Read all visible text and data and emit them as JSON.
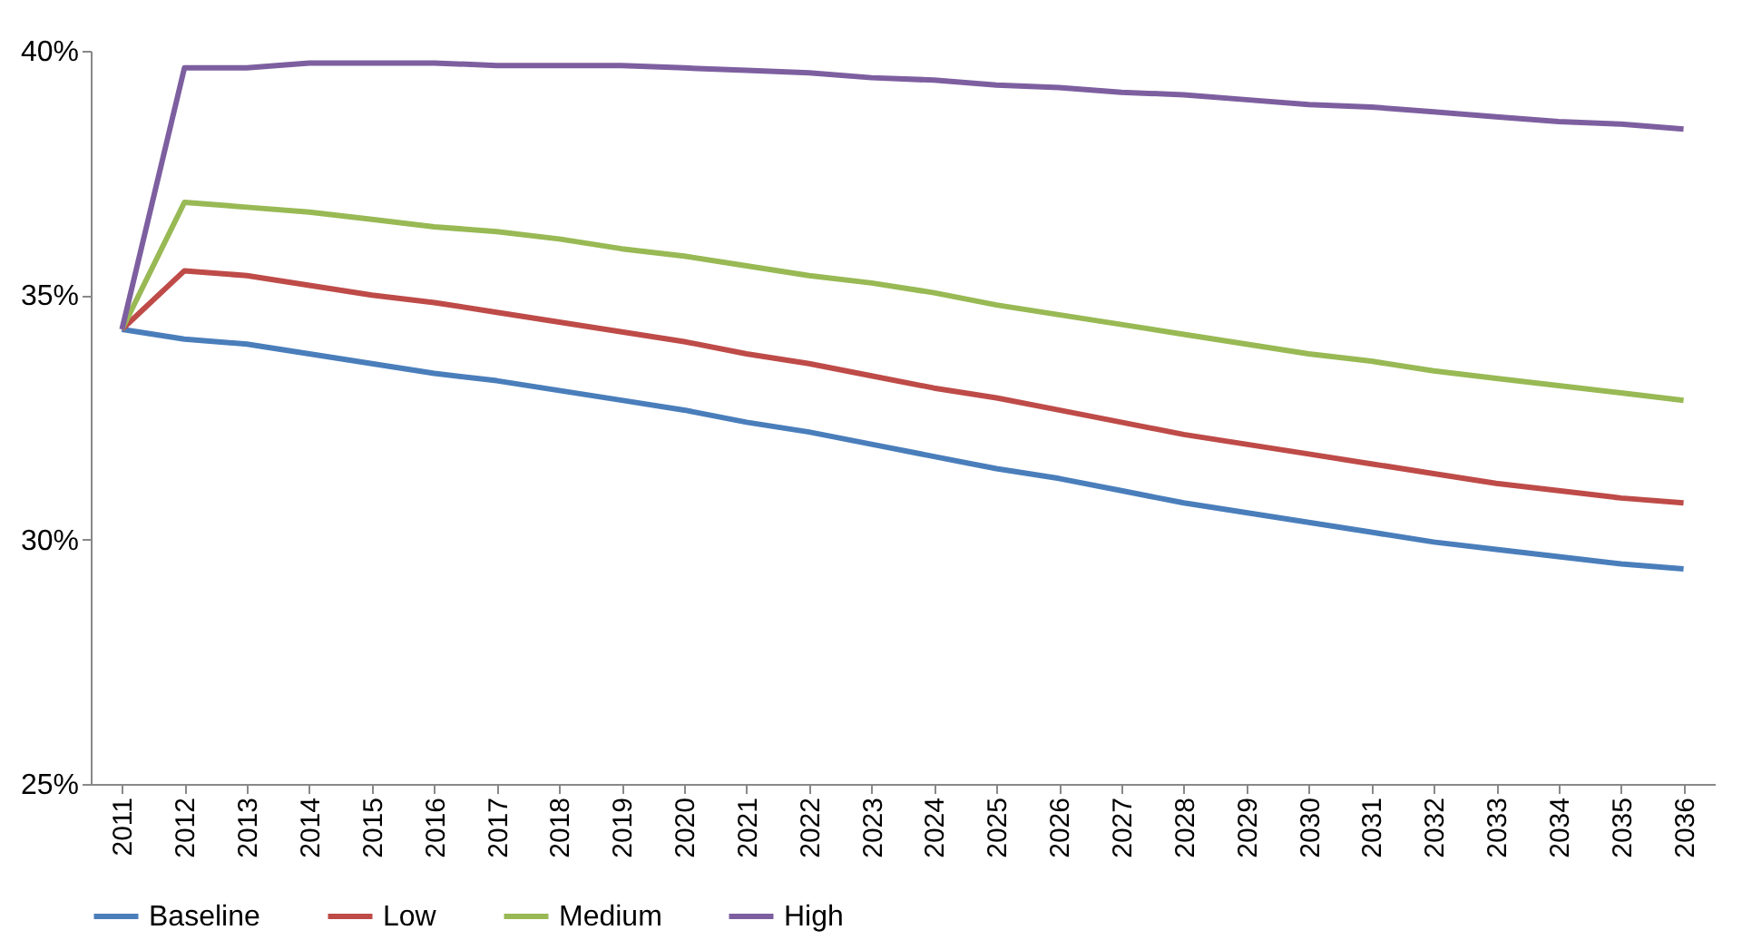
{
  "chart_data": {
    "type": "line",
    "categories": [
      "2011",
      "2012",
      "2013",
      "2014",
      "2015",
      "2016",
      "2017",
      "2018",
      "2019",
      "2020",
      "2021",
      "2022",
      "2023",
      "2024",
      "2025",
      "2026",
      "2027",
      "2028",
      "2029",
      "2030",
      "2031",
      "2032",
      "2033",
      "2034",
      "2035",
      "2036"
    ],
    "series": [
      {
        "name": "Baseline",
        "color": "#4a7ebb",
        "values": [
          34.3,
          34.1,
          34.0,
          33.8,
          33.6,
          33.4,
          33.25,
          33.05,
          32.85,
          32.65,
          32.4,
          32.2,
          31.95,
          31.7,
          31.45,
          31.25,
          31.0,
          30.75,
          30.55,
          30.35,
          30.15,
          29.95,
          29.8,
          29.65,
          29.5,
          29.4
        ]
      },
      {
        "name": "Low",
        "color": "#be4b48",
        "values": [
          34.3,
          35.5,
          35.4,
          35.2,
          35.0,
          34.85,
          34.65,
          34.45,
          34.25,
          34.05,
          33.8,
          33.6,
          33.35,
          33.1,
          32.9,
          32.65,
          32.4,
          32.15,
          31.95,
          31.75,
          31.55,
          31.35,
          31.15,
          31.0,
          30.85,
          30.75
        ]
      },
      {
        "name": "Medium",
        "color": "#98b954",
        "values": [
          34.3,
          36.9,
          36.8,
          36.7,
          36.55,
          36.4,
          36.3,
          36.15,
          35.95,
          35.8,
          35.6,
          35.4,
          35.25,
          35.05,
          34.8,
          34.6,
          34.4,
          34.2,
          34.0,
          33.8,
          33.65,
          33.45,
          33.3,
          33.15,
          33.0,
          32.85
        ]
      },
      {
        "name": "High",
        "color": "#7d5fa0",
        "values": [
          34.3,
          39.65,
          39.65,
          39.75,
          39.75,
          39.75,
          39.7,
          39.7,
          39.7,
          39.65,
          39.6,
          39.55,
          39.45,
          39.4,
          39.3,
          39.25,
          39.15,
          39.1,
          39.0,
          38.9,
          38.85,
          38.75,
          38.65,
          38.55,
          38.5,
          38.4
        ]
      }
    ],
    "ylim": [
      25,
      40
    ],
    "yticks": [
      {
        "value": 25,
        "label": "25%"
      },
      {
        "value": 30,
        "label": "30%"
      },
      {
        "value": 35,
        "label": "35%"
      },
      {
        "value": 40,
        "label": "40%"
      }
    ],
    "grid": false,
    "legend": "bottom",
    "marker": "none",
    "line_style": "solid"
  }
}
